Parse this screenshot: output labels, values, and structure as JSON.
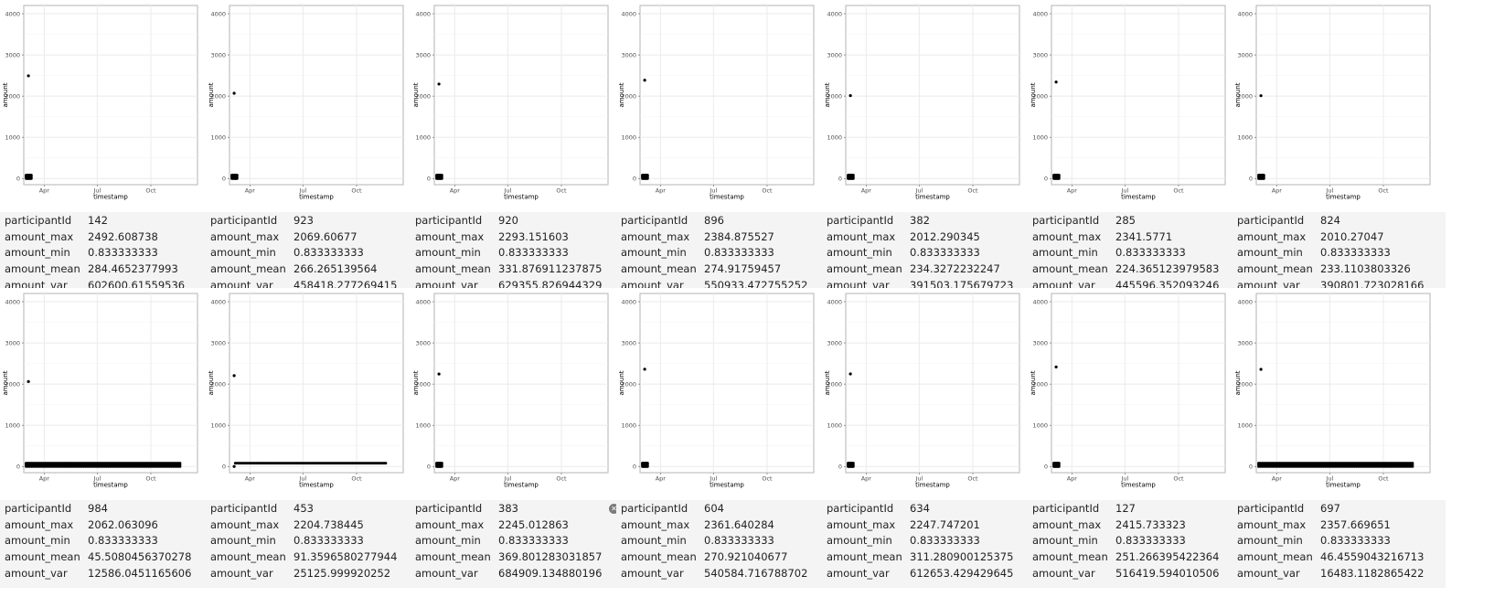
{
  "chart_data": [
    {
      "type": "scatter",
      "xlabel": "timestamp",
      "ylabel": "amount",
      "ylim": [
        -150,
        4200
      ],
      "yticks": [
        0,
        1000,
        2000,
        3000,
        4000
      ],
      "xticks": [
        "Apr",
        "Jul",
        "Oct"
      ],
      "grid": true,
      "points": [
        {
          "x": "2022-03-05",
          "y": 2492.608738
        }
      ],
      "cluster": {
        "from": "2022-03-01",
        "to": "2022-03-10",
        "low": 0.833333333,
        "high": 80
      },
      "stats": {
        "participantId": "142",
        "amount_max": "2492.608738",
        "amount_min": "0.833333333",
        "amount_mean": "284.4652377993",
        "amount_var": "602600.61559536"
      }
    },
    {
      "type": "scatter",
      "xlabel": "timestamp",
      "ylabel": "amount",
      "ylim": [
        -150,
        4200
      ],
      "yticks": [
        0,
        1000,
        2000,
        3000,
        4000
      ],
      "xticks": [
        "Apr",
        "Jul",
        "Oct"
      ],
      "grid": true,
      "points": [
        {
          "x": "2022-03-05",
          "y": 2069.60677
        }
      ],
      "cluster": {
        "from": "2022-03-01",
        "to": "2022-03-10",
        "low": 0.833333333,
        "high": 80
      },
      "stats": {
        "participantId": "923",
        "amount_max": "2069.60677",
        "amount_min": "0.833333333",
        "amount_mean": "266.265139564",
        "amount_var": "458418.277269415"
      }
    },
    {
      "type": "scatter",
      "xlabel": "timestamp",
      "ylabel": "amount",
      "ylim": [
        -150,
        4200
      ],
      "yticks": [
        0,
        1000,
        2000,
        3000,
        4000
      ],
      "xticks": [
        "Apr",
        "Jul",
        "Oct"
      ],
      "grid": true,
      "points": [
        {
          "x": "2022-03-05",
          "y": 2293.151603
        }
      ],
      "cluster": {
        "from": "2022-03-01",
        "to": "2022-03-10",
        "low": 0.833333333,
        "high": 80
      },
      "stats": {
        "participantId": "920",
        "amount_max": "2293.151603",
        "amount_min": "0.833333333",
        "amount_mean": "331.876911237875",
        "amount_var": "629355.826944329"
      }
    },
    {
      "type": "scatter",
      "xlabel": "timestamp",
      "ylabel": "amount",
      "ylim": [
        -150,
        4200
      ],
      "yticks": [
        0,
        1000,
        2000,
        3000,
        4000
      ],
      "xticks": [
        "Apr",
        "Jul",
        "Oct"
      ],
      "grid": true,
      "points": [
        {
          "x": "2022-03-05",
          "y": 2384.875527
        }
      ],
      "cluster": {
        "from": "2022-03-01",
        "to": "2022-03-10",
        "low": 0.833333333,
        "high": 80
      },
      "stats": {
        "participantId": "896",
        "amount_max": "2384.875527",
        "amount_min": "0.833333333",
        "amount_mean": "274.91759457",
        "amount_var": "550933.472755252"
      }
    },
    {
      "type": "scatter",
      "xlabel": "timestamp",
      "ylabel": "amount",
      "ylim": [
        -150,
        4200
      ],
      "yticks": [
        0,
        1000,
        2000,
        3000,
        4000
      ],
      "xticks": [
        "Apr",
        "Jul",
        "Oct"
      ],
      "grid": true,
      "points": [
        {
          "x": "2022-03-05",
          "y": 2012.290345
        }
      ],
      "cluster": {
        "from": "2022-03-01",
        "to": "2022-03-10",
        "low": 0.833333333,
        "high": 80
      },
      "stats": {
        "participantId": "382",
        "amount_max": "2012.290345",
        "amount_min": "0.833333333",
        "amount_mean": "234.3272232247",
        "amount_var": "391503.175679723"
      }
    },
    {
      "type": "scatter",
      "xlabel": "timestamp",
      "ylabel": "amount",
      "ylim": [
        -150,
        4200
      ],
      "yticks": [
        0,
        1000,
        2000,
        3000,
        4000
      ],
      "xticks": [
        "Apr",
        "Jul",
        "Oct"
      ],
      "grid": true,
      "points": [
        {
          "x": "2022-03-05",
          "y": 2341.5771
        }
      ],
      "cluster": {
        "from": "2022-03-01",
        "to": "2022-03-10",
        "low": 0.833333333,
        "high": 80
      },
      "stats": {
        "participantId": "285",
        "amount_max": "2341.5771",
        "amount_min": "0.833333333",
        "amount_mean": "224.365123979583",
        "amount_var": "445596.352093246"
      }
    },
    {
      "type": "scatter",
      "xlabel": "timestamp",
      "ylabel": "amount",
      "ylim": [
        -150,
        4200
      ],
      "yticks": [
        0,
        1000,
        2000,
        3000,
        4000
      ],
      "xticks": [
        "Apr",
        "Jul",
        "Oct"
      ],
      "grid": true,
      "points": [
        {
          "x": "2022-03-05",
          "y": 2010.27047
        }
      ],
      "cluster": {
        "from": "2022-03-01",
        "to": "2022-03-10",
        "low": 0.833333333,
        "high": 80
      },
      "stats": {
        "participantId": "824",
        "amount_max": "2010.27047",
        "amount_min": "0.833333333",
        "amount_mean": "233.1103803326",
        "amount_var": "390801.723028166"
      }
    },
    {
      "type": "scatter",
      "xlabel": "timestamp",
      "ylabel": "amount",
      "ylim": [
        -150,
        4200
      ],
      "yticks": [
        0,
        1000,
        2000,
        3000,
        4000
      ],
      "xticks": [
        "Apr",
        "Jul",
        "Oct"
      ],
      "grid": true,
      "points": [
        {
          "x": "2022-03-05",
          "y": 2062.063096
        }
      ],
      "cluster": {
        "from": "2022-03-01",
        "to": "2022-11-20",
        "low": 0.833333333,
        "high": 80
      },
      "stats": {
        "participantId": "984",
        "amount_max": "2062.063096",
        "amount_min": "0.833333333",
        "amount_mean": "45.5080456370278",
        "amount_var": "12586.0451165606"
      }
    },
    {
      "type": "scatter",
      "xlabel": "timestamp",
      "ylabel": "amount",
      "ylim": [
        -150,
        4200
      ],
      "yticks": [
        0,
        1000,
        2000,
        3000,
        4000
      ],
      "xticks": [
        "Apr",
        "Jul",
        "Oct"
      ],
      "grid": true,
      "points": [
        {
          "x": "2022-03-05",
          "y": 2204.738445
        },
        {
          "x": "2022-03-05",
          "y": 0.833333333
        }
      ],
      "cluster": {
        "from": "2022-03-07",
        "to": "2022-11-20",
        "low": 80,
        "high": 80
      },
      "stats": {
        "participantId": "453",
        "amount_max": "2204.738445",
        "amount_min": "0.833333333",
        "amount_mean": "91.3596580277944",
        "amount_var": "25125.999920252"
      }
    },
    {
      "type": "scatter",
      "xlabel": "timestamp",
      "ylabel": "amount",
      "ylim": [
        -150,
        4200
      ],
      "yticks": [
        0,
        1000,
        2000,
        3000,
        4000
      ],
      "xticks": [
        "Apr",
        "Jul",
        "Oct"
      ],
      "grid": true,
      "points": [
        {
          "x": "2022-03-05",
          "y": 2245.012863
        }
      ],
      "cluster": {
        "from": "2022-03-01",
        "to": "2022-03-10",
        "low": 0.833333333,
        "high": 80
      },
      "stats": {
        "participantId": "383",
        "amount_max": "2245.012863",
        "amount_min": "0.833333333",
        "amount_mean": "369.801283031857",
        "amount_var": "684909.134880196"
      }
    },
    {
      "type": "scatter",
      "xlabel": "timestamp",
      "ylabel": "amount",
      "ylim": [
        -150,
        4200
      ],
      "yticks": [
        0,
        1000,
        2000,
        3000,
        4000
      ],
      "xticks": [
        "Apr",
        "Jul",
        "Oct"
      ],
      "grid": true,
      "points": [
        {
          "x": "2022-03-05",
          "y": 2361.640284
        }
      ],
      "cluster": {
        "from": "2022-03-01",
        "to": "2022-03-10",
        "low": 0.833333333,
        "high": 80
      },
      "stats": {
        "participantId": "604",
        "amount_max": "2361.640284",
        "amount_min": "0.833333333",
        "amount_mean": "270.921040677",
        "amount_var": "540584.716788702"
      }
    },
    {
      "type": "scatter",
      "xlabel": "timestamp",
      "ylabel": "amount",
      "ylim": [
        -150,
        4200
      ],
      "yticks": [
        0,
        1000,
        2000,
        3000,
        4000
      ],
      "xticks": [
        "Apr",
        "Jul",
        "Oct"
      ],
      "grid": true,
      "points": [
        {
          "x": "2022-03-05",
          "y": 2247.747201
        }
      ],
      "cluster": {
        "from": "2022-03-01",
        "to": "2022-03-10",
        "low": 0.833333333,
        "high": 80
      },
      "stats": {
        "participantId": "634",
        "amount_max": "2247.747201",
        "amount_min": "0.833333333",
        "amount_mean": "311.280900125375",
        "amount_var": "612653.429429645"
      }
    },
    {
      "type": "scatter",
      "xlabel": "timestamp",
      "ylabel": "amount",
      "ylim": [
        -150,
        4200
      ],
      "yticks": [
        0,
        1000,
        2000,
        3000,
        4000
      ],
      "xticks": [
        "Apr",
        "Jul",
        "Oct"
      ],
      "grid": true,
      "points": [
        {
          "x": "2022-03-05",
          "y": 2415.733323
        }
      ],
      "cluster": {
        "from": "2022-03-01",
        "to": "2022-03-10",
        "low": 0.833333333,
        "high": 80
      },
      "stats": {
        "participantId": "127",
        "amount_max": "2415.733323",
        "amount_min": "0.833333333",
        "amount_mean": "251.266395422364",
        "amount_var": "516419.594010506"
      }
    },
    {
      "type": "scatter",
      "xlabel": "timestamp",
      "ylabel": "amount",
      "ylim": [
        -150,
        4200
      ],
      "yticks": [
        0,
        1000,
        2000,
        3000,
        4000
      ],
      "xticks": [
        "Apr",
        "Jul",
        "Oct"
      ],
      "grid": true,
      "points": [
        {
          "x": "2022-03-05",
          "y": 2357.669651
        }
      ],
      "cluster": {
        "from": "2022-03-01",
        "to": "2022-11-20",
        "low": 0.833333333,
        "high": 80
      },
      "stats": {
        "participantId": "697",
        "amount_max": "2357.669651",
        "amount_min": "0.833333333",
        "amount_mean": "46.4559043216713",
        "amount_var": "16483.1182865422"
      }
    }
  ],
  "stat_keys": [
    "participantId",
    "amount_max",
    "amount_min",
    "amount_mean",
    "amount_var"
  ],
  "colors": {
    "panel_border": "#b3b3b3",
    "gridline": "#ebebeb",
    "point": "#000000",
    "stats_bg": "#f4f4f4",
    "close_icon_bg": "#7a7a7a"
  },
  "close_icon": {
    "name": "close-icon",
    "symbol": "✕"
  }
}
